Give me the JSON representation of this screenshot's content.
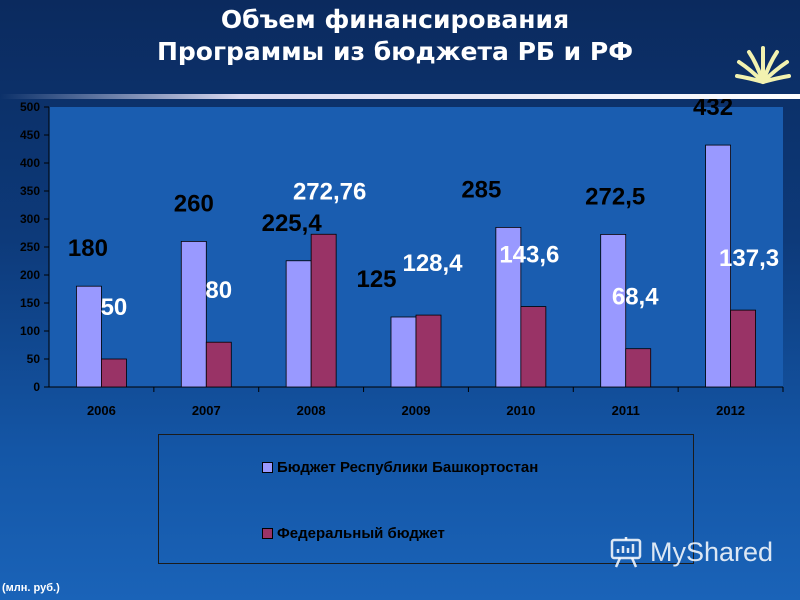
{
  "title": {
    "line1": "Объем финансирования",
    "line2": "Программы из бюджета РБ и РФ"
  },
  "unit_note": "(млн. руб.)",
  "watermark": "MyShared",
  "colors": {
    "series1": "#9999ff",
    "series2": "#993366",
    "plot_bg": "#1a5db0"
  },
  "chart_data": {
    "type": "bar",
    "categories": [
      "2006",
      "2007",
      "2008",
      "2009",
      "2010",
      "2011",
      "2012"
    ],
    "series": [
      {
        "name": "Бюджет Республики Башкортостан",
        "values": [
          180,
          260,
          225.4,
          125,
          285,
          272.5,
          432
        ],
        "labels": [
          "180",
          "260",
          "225,4",
          "125",
          "285",
          "272,5",
          "432"
        ]
      },
      {
        "name": "Федеральный бюджет",
        "values": [
          50,
          80,
          272.76,
          128.4,
          143.6,
          68.4,
          137.3
        ],
        "labels": [
          "50",
          "80",
          "272,76",
          "128,4",
          "143,6",
          "68,4",
          "137,3"
        ]
      }
    ],
    "ylim": [
      0,
      500
    ],
    "yticks": [
      0,
      50,
      100,
      150,
      200,
      250,
      300,
      350,
      400,
      450,
      500
    ],
    "grid": false,
    "legend_position": "bottom"
  }
}
